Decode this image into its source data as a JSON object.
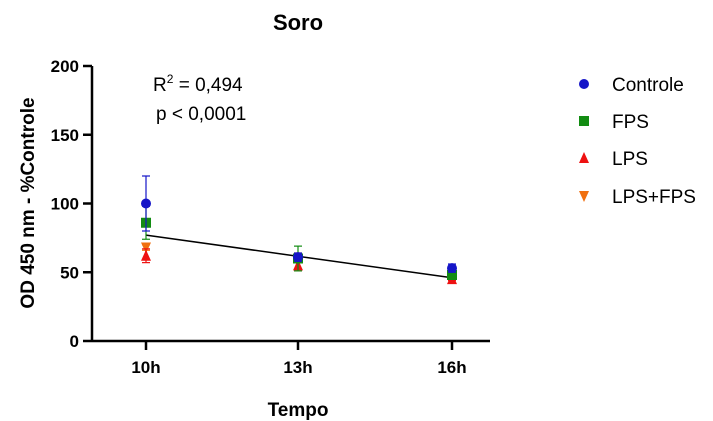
{
  "chart_data": {
    "type": "scatter",
    "title": "Soro",
    "xlabel": "Tempo",
    "ylabel": "OD 450 nm - %Controle",
    "categories": [
      "10h",
      "13h",
      "16h"
    ],
    "ylim": [
      0,
      200
    ],
    "yticks": [
      0,
      50,
      100,
      150,
      200
    ],
    "grid": false,
    "legend_position": "right",
    "annotation": {
      "r2_prefix": "R",
      "r2_superscript": "2",
      "r2_value": " = 0,494",
      "p_text": "p < 0,0001"
    },
    "regression_line": {
      "x": [
        "10h",
        "16h"
      ],
      "y": [
        77,
        46
      ]
    },
    "series": [
      {
        "name": "Controle",
        "color": "#1515c8",
        "marker": "circle",
        "values": [
          100,
          61,
          53
        ],
        "errors": [
          20,
          3,
          3
        ]
      },
      {
        "name": "FPS",
        "color": "#128c12",
        "marker": "square",
        "values": [
          86,
          60,
          48
        ],
        "errors": [
          12,
          9,
          2
        ]
      },
      {
        "name": "LPS",
        "color": "#ee1111",
        "marker": "triangle-up",
        "values": [
          62,
          55,
          45
        ],
        "errors": [
          5,
          4,
          1
        ]
      },
      {
        "name": "LPS+FPS",
        "color": "#f07010",
        "marker": "triangle-down",
        "values": [
          68,
          58,
          46
        ],
        "errors": [
          2,
          6,
          1
        ]
      }
    ]
  }
}
